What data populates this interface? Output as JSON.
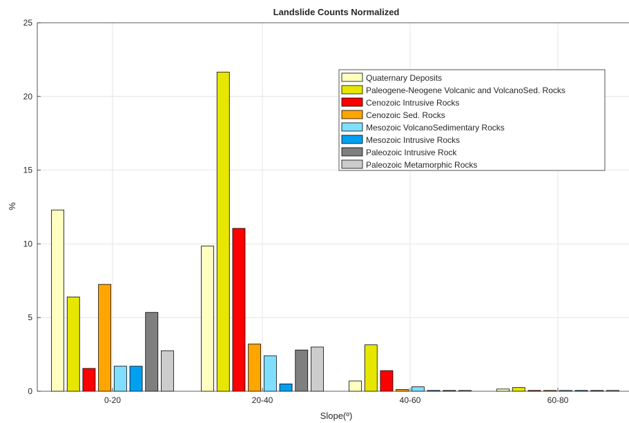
{
  "chart_data": {
    "type": "bar",
    "title": "Landslide Counts Normalized",
    "xlabel": "Slope(º)",
    "ylabel": "%",
    "ylim": [
      0,
      25
    ],
    "yticks": [
      0,
      5,
      10,
      15,
      20,
      25
    ],
    "grid": true,
    "legend_position": "top-right",
    "categories": [
      "0-20",
      "20-40",
      "40-60",
      "60-80"
    ],
    "series": [
      {
        "name": "Quaternary Deposits",
        "color": "#ffffc0",
        "values": [
          12.3,
          9.85,
          0.7,
          0.15
        ]
      },
      {
        "name": "Paleogene-Neogene Volcanic and VolcanoSed. Rocks",
        "color": "#e6e600",
        "values": [
          6.4,
          21.65,
          3.15,
          0.25
        ]
      },
      {
        "name": "Cenozoic Intrusive Rocks",
        "color": "#ff0000",
        "values": [
          1.55,
          11.05,
          1.4,
          0.05
        ]
      },
      {
        "name": "Cenozoic Sed. Rocks",
        "color": "#ffa500",
        "values": [
          7.25,
          3.2,
          0.12,
          0.0
        ]
      },
      {
        "name": "Mesozoic VolcanoSedimentary Rocks",
        "color": "#80dfff",
        "values": [
          1.7,
          2.4,
          0.3,
          0.0
        ]
      },
      {
        "name": "Mesozoic Intrusive Rocks",
        "color": "#00a0f0",
        "values": [
          1.7,
          0.5,
          0.02,
          0.0
        ]
      },
      {
        "name": "Paleozoic Intrusive Rock",
        "color": "#7f7f7f",
        "values": [
          5.35,
          2.8,
          0.05,
          0.0
        ]
      },
      {
        "name": "Paleozoic Metamorphic Rocks",
        "color": "#cccccc",
        "values": [
          2.75,
          3.0,
          0.02,
          0.0
        ]
      }
    ]
  }
}
